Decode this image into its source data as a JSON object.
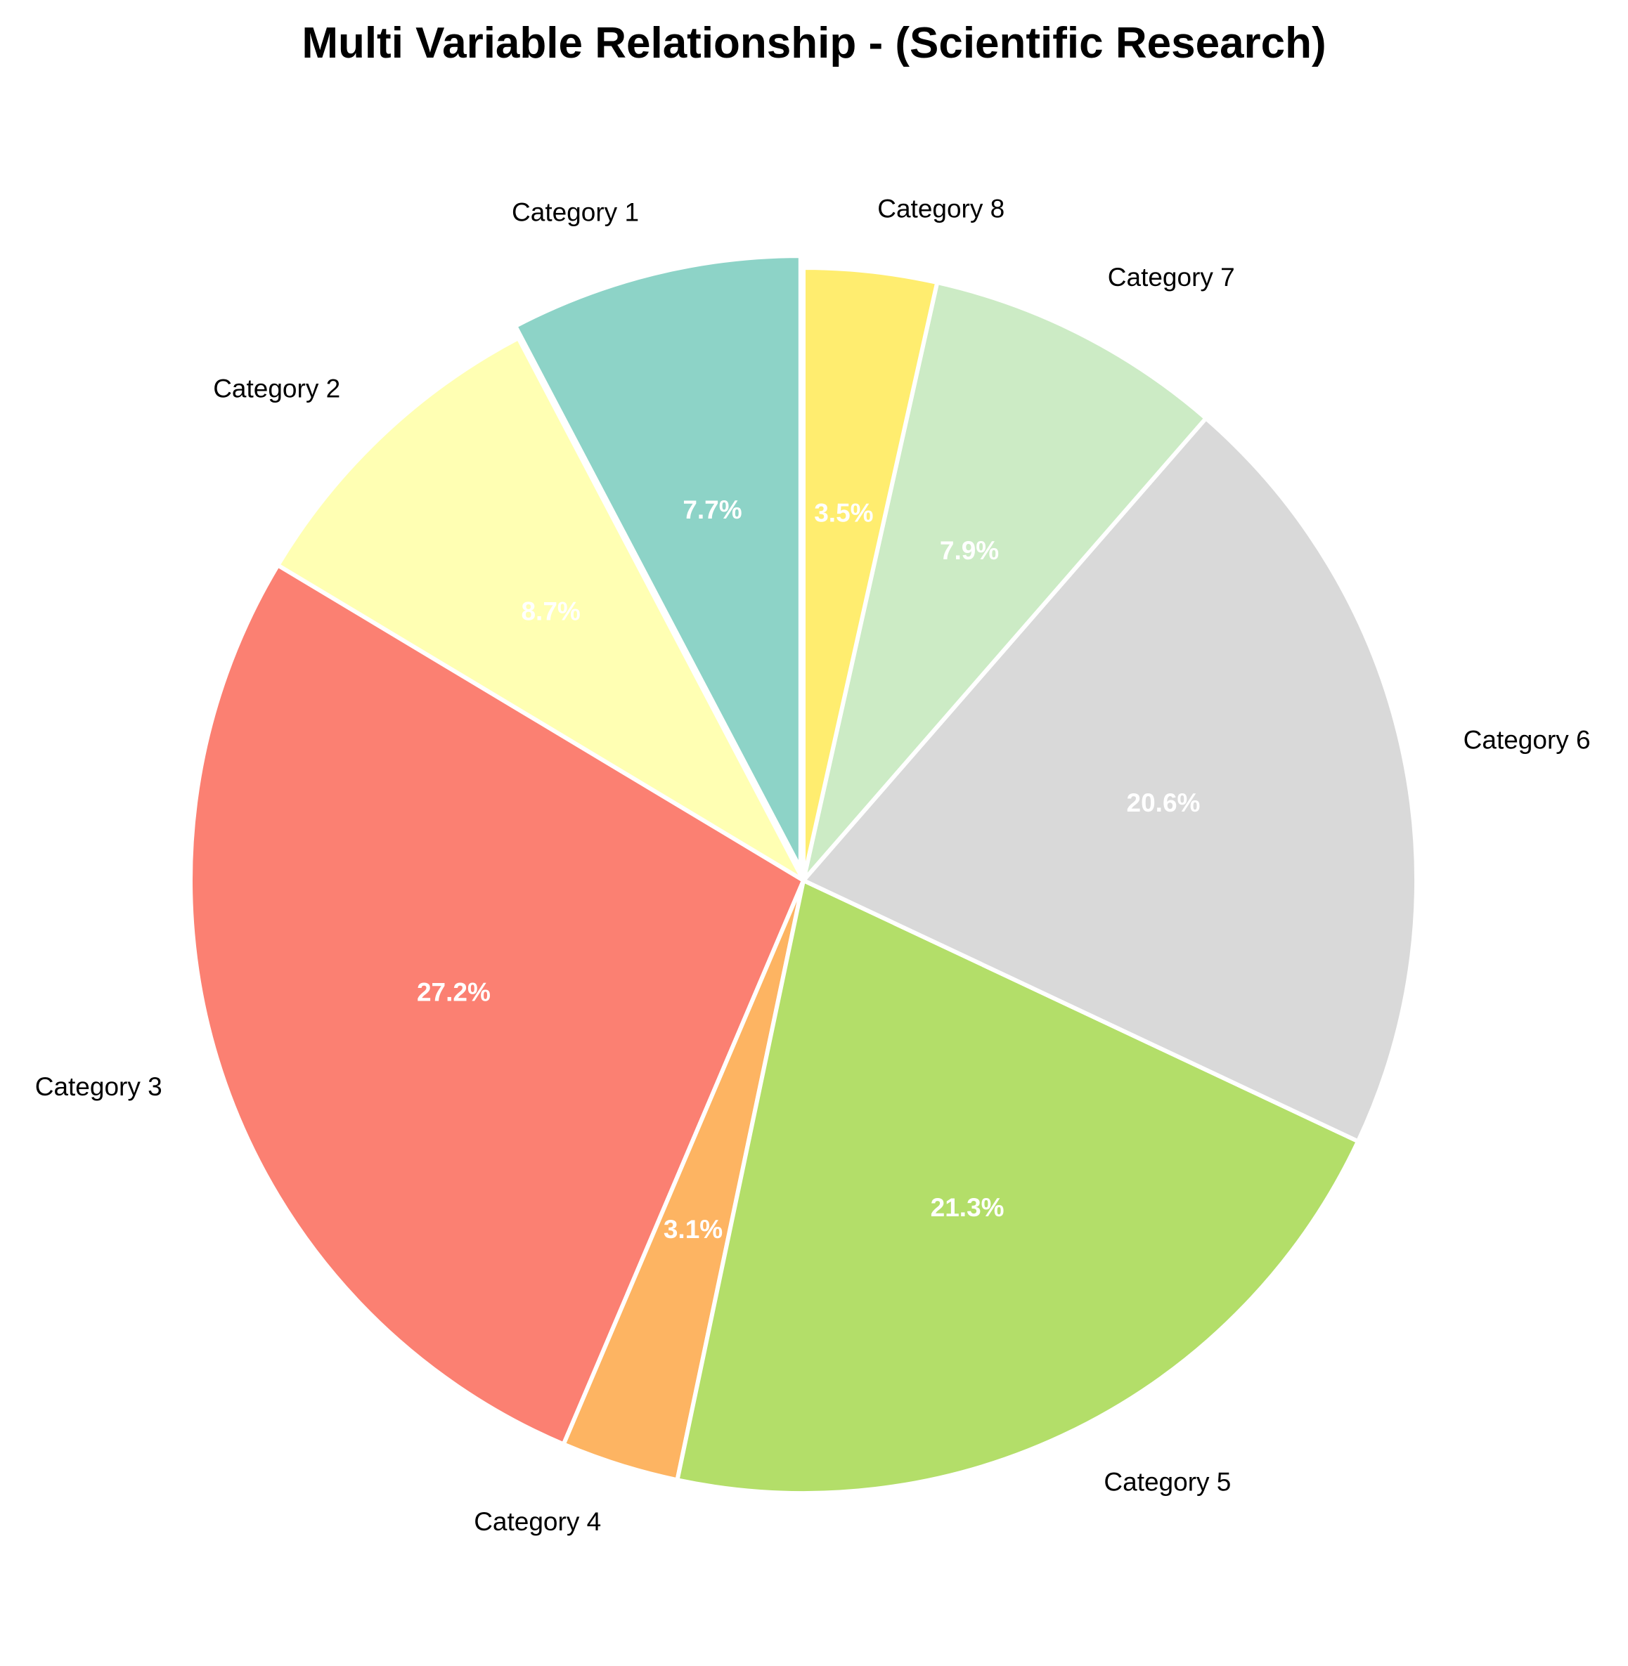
{
  "chart_data": {
    "type": "pie",
    "title": "Multi Variable Relationship - (Scientific Research)",
    "categories": [
      "Category 1",
      "Category 2",
      "Category 3",
      "Category 4",
      "Category 5",
      "Category 6",
      "Category 7",
      "Category 8"
    ],
    "values": [
      7.7,
      8.7,
      27.2,
      3.1,
      21.3,
      20.6,
      7.9,
      3.5
    ],
    "value_labels": [
      "7.7%",
      "8.7%",
      "27.2%",
      "3.1%",
      "21.3%",
      "20.6%",
      "7.9%",
      "3.5%"
    ],
    "colors": [
      "#8dd3c7",
      "#ffffb3",
      "#fb8072",
      "#fdb462",
      "#b3de69",
      "#d9d9d9",
      "#ccebc5",
      "#ffed6f"
    ],
    "start_angle_deg": 90,
    "direction": "counterclockwise",
    "exploded": [
      "Category 1"
    ],
    "legend": "none"
  }
}
